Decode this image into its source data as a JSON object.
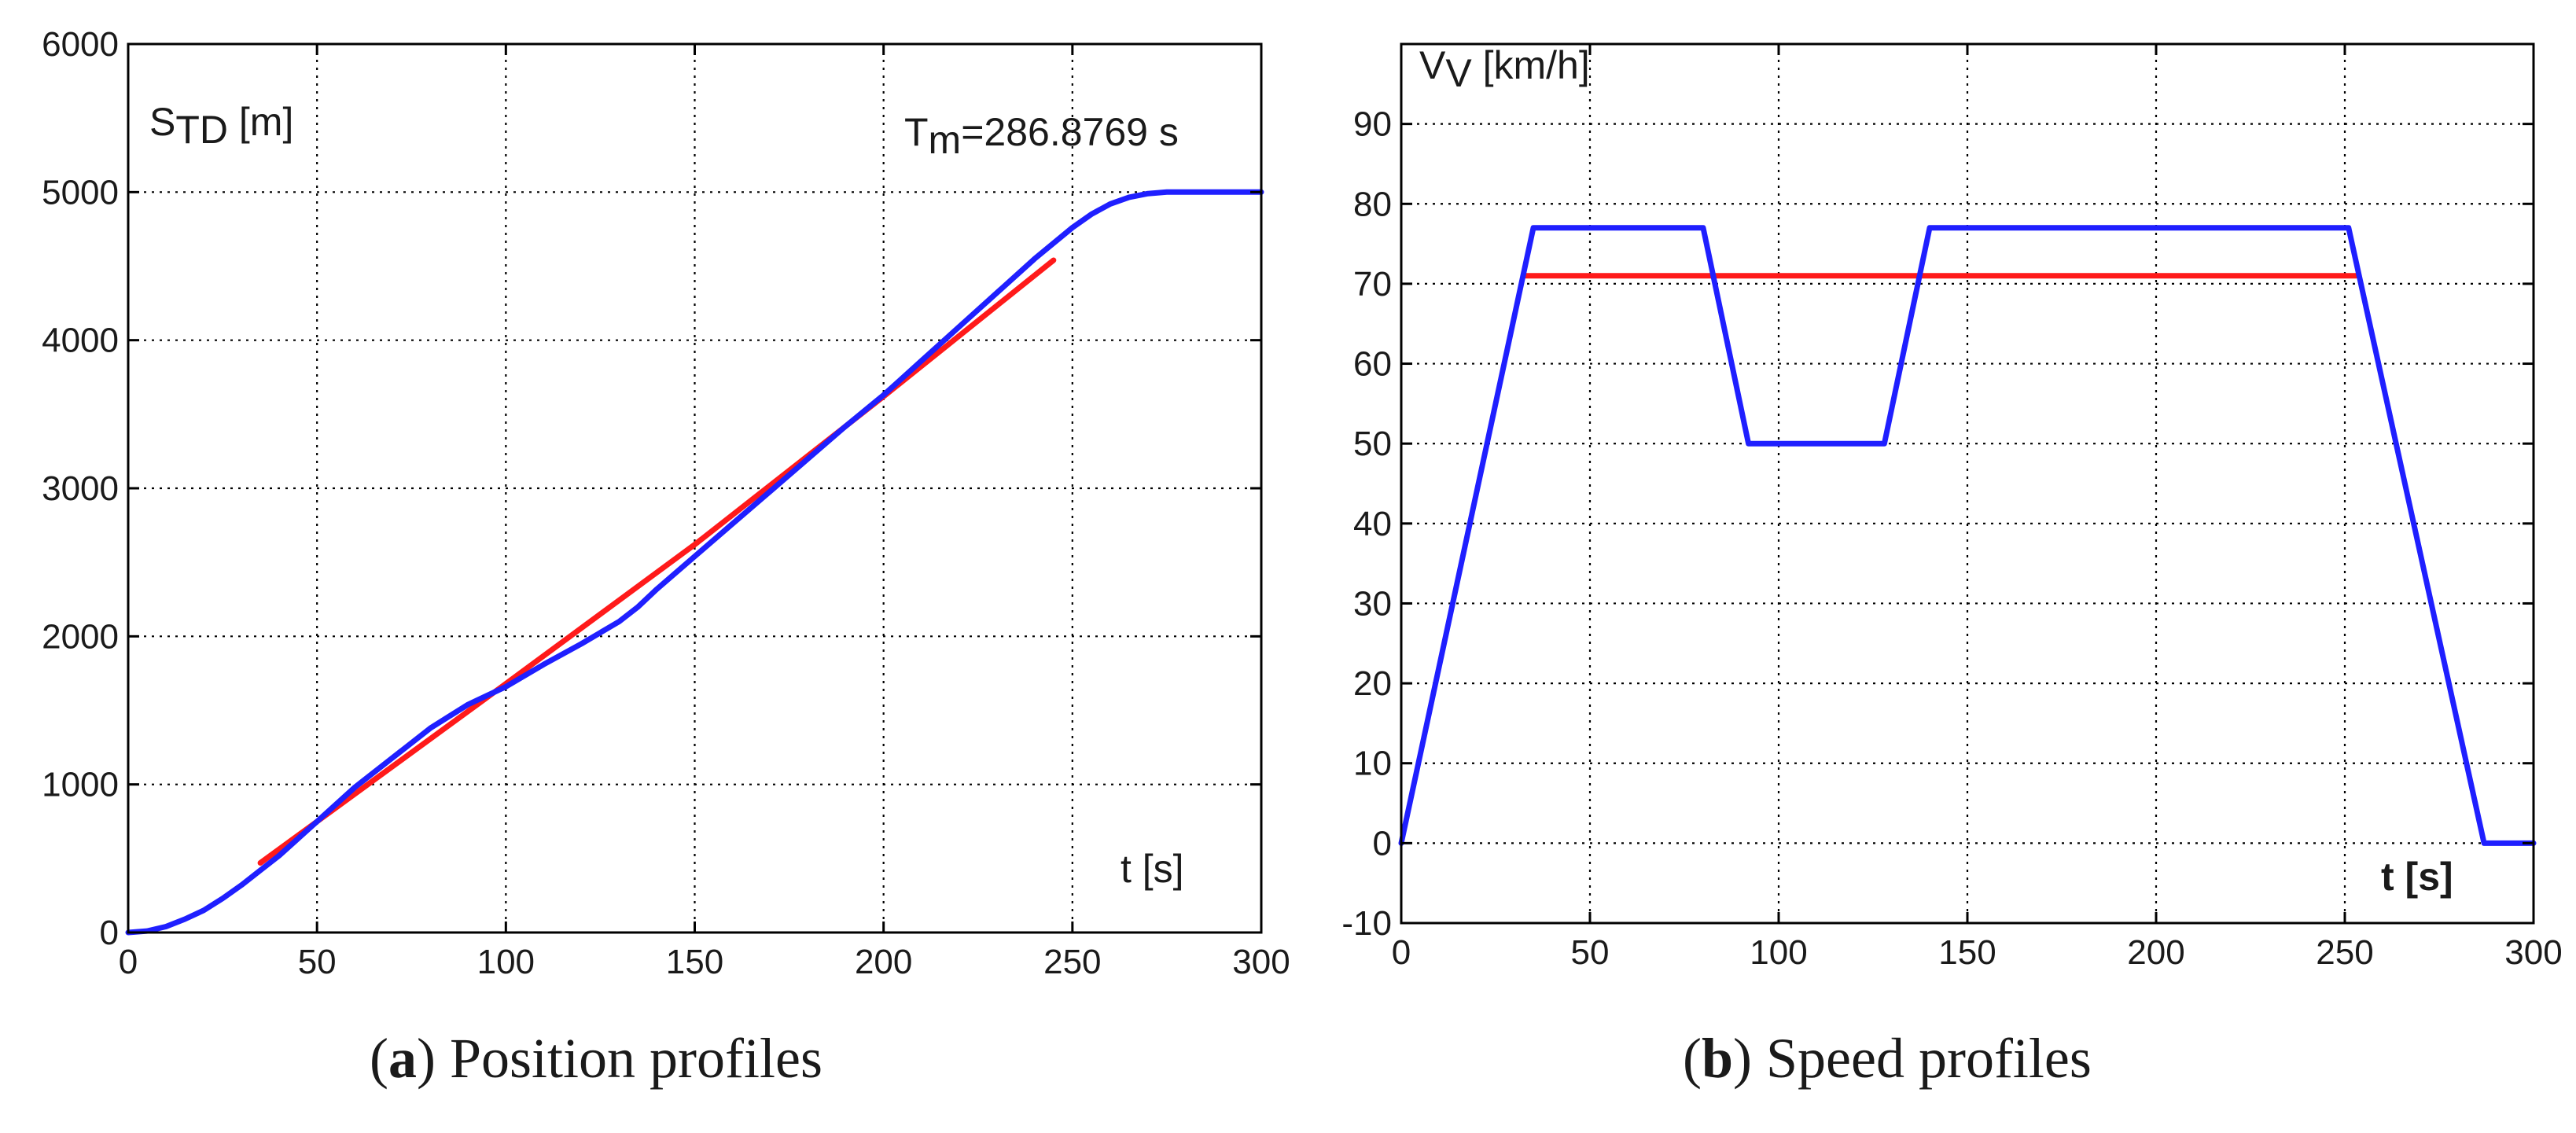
{
  "colors": {
    "red_series": "#ff1a1a",
    "blue_series": "#1f1fff",
    "axes": "#000000"
  },
  "chart_data": [
    {
      "type": "line",
      "caption": {
        "letter": "a",
        "text": ") Position profiles"
      },
      "ylabel": {
        "main": "S",
        "sub": "TD",
        "unit": " [m]"
      },
      "xlabel": "t [s]",
      "annotation": {
        "main": "T",
        "sub": "m",
        "text": "=286.8769 s"
      },
      "xlim": [
        0,
        300
      ],
      "ylim": [
        0,
        6000
      ],
      "xticks": [
        0,
        50,
        100,
        150,
        200,
        250,
        300
      ],
      "yticks": [
        0,
        1000,
        2000,
        3000,
        4000,
        5000,
        6000
      ],
      "grid": true,
      "series": [
        {
          "color": "red",
          "x": [
            35,
            100,
            150,
            200,
            245
          ],
          "y": [
            470,
            1680,
            2620,
            3620,
            4540
          ]
        },
        {
          "color": "blue",
          "x": [
            0,
            5,
            10,
            15,
            20,
            25,
            30,
            35,
            40,
            50,
            60,
            70,
            80,
            85,
            90,
            95,
            100,
            110,
            120,
            130,
            135,
            140,
            150,
            160,
            170,
            180,
            190,
            200,
            210,
            220,
            230,
            240,
            250,
            255,
            260,
            265,
            270,
            275,
            280,
            286.9,
            300
          ],
          "y": [
            0,
            10,
            40,
            90,
            150,
            230,
            320,
            420,
            520,
            750,
            980,
            1180,
            1380,
            1460,
            1540,
            1600,
            1660,
            1810,
            1950,
            2100,
            2200,
            2320,
            2540,
            2760,
            2980,
            3200,
            3420,
            3630,
            3860,
            4090,
            4320,
            4550,
            4760,
            4850,
            4920,
            4965,
            4990,
            5000,
            5000,
            5000,
            5000
          ]
        }
      ]
    },
    {
      "type": "line",
      "caption": {
        "letter": "b",
        "text": ") Speed profiles"
      },
      "ylabel": {
        "main": "V",
        "sub": "V",
        "unit": " [km/h]"
      },
      "xlabel": "t [s]",
      "xlim": [
        0,
        300
      ],
      "ylim": [
        -10,
        100
      ],
      "xticks": [
        0,
        50,
        100,
        150,
        200,
        250,
        300
      ],
      "yticks": [
        -10,
        0,
        10,
        20,
        30,
        40,
        50,
        60,
        70,
        80,
        90
      ],
      "grid": true,
      "series": [
        {
          "color": "red",
          "x": [
            33,
            253
          ],
          "y": [
            71,
            71
          ]
        },
        {
          "color": "blue",
          "x": [
            0,
            35,
            80,
            92,
            128,
            140,
            251,
            286.9,
            300
          ],
          "y": [
            0,
            77,
            77,
            50,
            50,
            77,
            77,
            0,
            0
          ]
        }
      ]
    }
  ]
}
